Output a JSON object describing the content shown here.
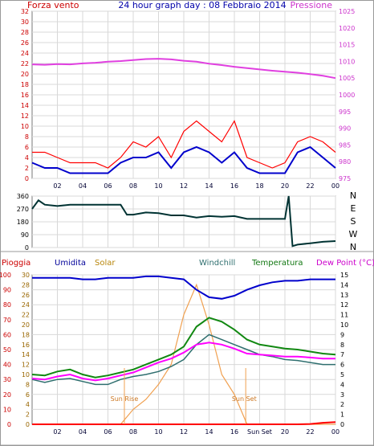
{
  "header": {
    "left": "Forza vento",
    "center": "24 hour graph day : 08 Febbraio 2014",
    "right": "Pressione"
  },
  "time_ticks": [
    "02",
    "04",
    "06",
    "08",
    "10",
    "12",
    "14",
    "16",
    "18",
    "20",
    "22",
    "00"
  ],
  "bottom_ticks": [
    "02",
    "04",
    "06",
    "08",
    "10",
    "12",
    "14",
    "16",
    "Sun Set",
    "20",
    "22",
    "00"
  ],
  "colors": {
    "wind": "#ff0000",
    "wind_avg": "#0000cc",
    "pressure": "#e040e0",
    "direction": "#003333",
    "rain": "#ff0000",
    "humidity": "#0000cc",
    "solar": "#f0a050",
    "windchill": "#2f6f6f",
    "temperature": "#118811",
    "dew_point": "#ff00ff",
    "grid": "#d8d8d8"
  },
  "chart_data": [
    {
      "type": "line",
      "name": "wind-pressure",
      "y_ticks": [
        "0",
        "2",
        "4",
        "6",
        "8",
        "10",
        "12",
        "14",
        "16",
        "18",
        "20",
        "22",
        "24",
        "26",
        "28",
        "30",
        "32"
      ],
      "y2_ticks": [
        "975",
        "980",
        "985",
        "990",
        "995",
        "1000",
        "1005",
        "1010",
        "1015",
        "1020",
        "1025"
      ],
      "ylim": [
        0,
        32
      ],
      "y2lim": [
        975,
        1025
      ],
      "x_hours": [
        0,
        1,
        2,
        3,
        4,
        5,
        6,
        7,
        8,
        9,
        10,
        11,
        12,
        13,
        14,
        15,
        16,
        17,
        18,
        19,
        20,
        21,
        22,
        23,
        24
      ],
      "series": [
        {
          "key": "wind_gust",
          "values": [
            5,
            5,
            4,
            3,
            3,
            3,
            2,
            4,
            7,
            6,
            8,
            4,
            9,
            11,
            9,
            7,
            11,
            4,
            3,
            2,
            3,
            7,
            8,
            7,
            5
          ]
        },
        {
          "key": "wind_avg",
          "values": [
            3,
            2,
            2,
            1,
            1,
            1,
            1,
            3,
            4,
            4,
            5,
            2,
            5,
            6,
            5,
            3,
            5,
            2,
            1,
            1,
            1,
            5,
            6,
            4,
            2
          ]
        },
        {
          "key": "pressure",
          "values": [
            1009.1,
            1009.0,
            1009.2,
            1009.1,
            1009.4,
            1009.6,
            1009.9,
            1010.1,
            1010.4,
            1010.7,
            1010.8,
            1010.6,
            1010.2,
            1009.9,
            1009.3,
            1008.9,
            1008.4,
            1008.0,
            1007.6,
            1007.2,
            1006.9,
            1006.6,
            1006.2,
            1005.7,
            1005.0
          ]
        }
      ]
    },
    {
      "type": "line",
      "name": "wind-direction",
      "y_ticks": [
        "0",
        "90",
        "180",
        "270",
        "360"
      ],
      "y_right_labels": [
        "N",
        "W",
        "S",
        "E",
        "N"
      ],
      "ylim": [
        0,
        360
      ],
      "x_hours": [
        0,
        0.5,
        1,
        2,
        3,
        4,
        5,
        6,
        7,
        7.5,
        8,
        9,
        10,
        11,
        12,
        13,
        14,
        15,
        16,
        17,
        18,
        19,
        20,
        20.3,
        20.6,
        21,
        22,
        23,
        24
      ],
      "values": [
        270,
        330,
        300,
        290,
        300,
        300,
        300,
        300,
        300,
        230,
        230,
        245,
        240,
        225,
        225,
        210,
        220,
        215,
        220,
        200,
        200,
        200,
        200,
        360,
        10,
        20,
        30,
        40,
        45
      ]
    },
    {
      "type": "line",
      "name": "weather",
      "headers": [
        "Pioggia",
        "Umidita",
        "Solar",
        "Windchill",
        "Temperatura",
        "Dew Point (°C)"
      ],
      "y_ticks": [
        "0",
        "10",
        "20",
        "30",
        "40",
        "50",
        "60",
        "70",
        "80",
        "90",
        "100"
      ],
      "y_solar_ticks": [
        "0",
        "2",
        "4",
        "6",
        "8",
        "10",
        "12",
        "14",
        "16",
        "18",
        "20",
        "22",
        "24",
        "26",
        "28",
        "30"
      ],
      "y2_ticks": [
        "0",
        "1",
        "2",
        "3",
        "4",
        "5",
        "6",
        "7",
        "8",
        "9",
        "10",
        "11",
        "12",
        "13",
        "14",
        "15"
      ],
      "ylim": [
        0,
        100
      ],
      "y_solar_lim": [
        0,
        30
      ],
      "y2lim": [
        0,
        15
      ],
      "annotations": [
        "Sun Rise",
        "Sun Set"
      ],
      "x_hours": [
        0,
        1,
        2,
        3,
        4,
        5,
        6,
        7,
        8,
        9,
        10,
        11,
        12,
        13,
        14,
        15,
        16,
        17,
        18,
        19,
        20,
        21,
        22,
        23,
        24
      ],
      "series": [
        {
          "key": "humidity",
          "values": [
            98,
            98,
            98,
            98,
            97,
            97,
            98,
            98,
            98,
            99,
            99,
            98,
            97,
            90,
            85,
            84,
            86,
            90,
            93,
            95,
            96,
            96,
            97,
            97,
            97
          ]
        },
        {
          "key": "solar",
          "values": [
            0,
            0,
            0,
            0,
            0,
            0,
            0,
            0,
            3,
            5,
            8,
            12,
            22,
            28,
            20,
            10,
            6,
            0,
            0,
            0,
            0,
            0,
            0,
            0,
            0
          ]
        },
        {
          "key": "windchill",
          "values": [
            4.5,
            4.2,
            4.5,
            4.6,
            4.3,
            4.0,
            4.0,
            4.5,
            4.8,
            5.0,
            5.3,
            5.8,
            6.5,
            8.0,
            9.0,
            8.5,
            8.0,
            7.5,
            7.0,
            6.8,
            6.5,
            6.4,
            6.2,
            6.0,
            6.0
          ]
        },
        {
          "key": "temperature",
          "values": [
            5.0,
            4.9,
            5.3,
            5.5,
            5.0,
            4.7,
            4.9,
            5.2,
            5.5,
            6.0,
            6.5,
            7.0,
            7.8,
            9.8,
            10.7,
            10.3,
            9.5,
            8.5,
            8.0,
            7.8,
            7.6,
            7.5,
            7.3,
            7.1,
            7.0
          ]
        },
        {
          "key": "dew_point",
          "values": [
            4.6,
            4.5,
            4.8,
            5.0,
            4.6,
            4.4,
            4.6,
            4.9,
            5.2,
            5.7,
            6.2,
            6.6,
            7.2,
            8.0,
            8.2,
            8.0,
            7.6,
            7.1,
            7.0,
            6.9,
            6.8,
            6.8,
            6.7,
            6.6,
            6.6
          ]
        },
        {
          "key": "rain",
          "values": [
            0,
            0,
            0,
            0,
            0,
            0,
            0,
            0,
            0,
            0,
            0,
            0,
            0,
            0,
            0,
            0,
            0,
            0,
            0,
            0,
            0,
            0,
            0.2,
            1.0,
            1.5
          ]
        }
      ]
    }
  ]
}
